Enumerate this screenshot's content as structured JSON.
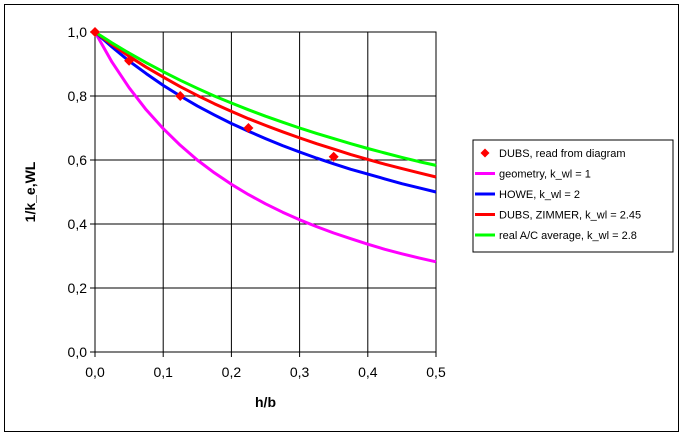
{
  "chart_data": {
    "type": "line",
    "title": "",
    "xlabel": "h/b",
    "ylabel": "1/k_e,WL",
    "xlim": [
      0.0,
      0.5
    ],
    "ylim": [
      0.0,
      1.0
    ],
    "grid": true,
    "legend_position": "right",
    "x_ticks": [
      "0,0",
      "0,1",
      "0,2",
      "0,3",
      "0,4",
      "0,5"
    ],
    "y_ticks": [
      "0,0",
      "0,2",
      "0,4",
      "0,6",
      "0,8",
      "1,0"
    ],
    "series": [
      {
        "name": "DUBS, read from diagram",
        "kind": "scatter",
        "color": "#ff0000",
        "marker": "diamond",
        "x": [
          0.0,
          0.05,
          0.125,
          0.225,
          0.35
        ],
        "y": [
          1.0,
          0.91,
          0.8,
          0.7,
          0.61
        ]
      },
      {
        "name": "geometry, k_wl = 1",
        "kind": "line",
        "color": "#ff00ff",
        "k_wl": 1,
        "x": [
          0.0,
          0.025,
          0.05,
          0.075,
          0.1,
          0.125,
          0.15,
          0.175,
          0.2,
          0.225,
          0.25,
          0.275,
          0.3,
          0.325,
          0.35,
          0.375,
          0.4,
          0.425,
          0.45,
          0.475,
          0.5
        ],
        "y": [
          1.0,
          0.906,
          0.826,
          0.757,
          0.698,
          0.646,
          0.6,
          0.56,
          0.524,
          0.492,
          0.463,
          0.437,
          0.413,
          0.392,
          0.372,
          0.354,
          0.337,
          0.321,
          0.307,
          0.294,
          0.282
        ]
      },
      {
        "name": "HOWE, k_wl = 2",
        "kind": "line",
        "color": "#0000ff",
        "k_wl": 2,
        "x": [
          0.0,
          0.025,
          0.05,
          0.075,
          0.1,
          0.125,
          0.15,
          0.175,
          0.2,
          0.225,
          0.25,
          0.275,
          0.3,
          0.325,
          0.35,
          0.375,
          0.4,
          0.425,
          0.45,
          0.475,
          0.5
        ],
        "y": [
          1.0,
          0.953,
          0.909,
          0.87,
          0.833,
          0.8,
          0.769,
          0.741,
          0.714,
          0.69,
          0.667,
          0.645,
          0.625,
          0.606,
          0.588,
          0.571,
          0.556,
          0.541,
          0.526,
          0.513,
          0.5
        ]
      },
      {
        "name": "DUBS, ZIMMER, k_wl = 2.45",
        "kind": "line",
        "color": "#ff0000",
        "k_wl": 2.45,
        "x": [
          0.0,
          0.025,
          0.05,
          0.075,
          0.1,
          0.125,
          0.15,
          0.175,
          0.2,
          0.225,
          0.25,
          0.275,
          0.3,
          0.325,
          0.35,
          0.375,
          0.4,
          0.425,
          0.45,
          0.475,
          0.5
        ],
        "y": [
          1.0,
          0.961,
          0.924,
          0.89,
          0.859,
          0.829,
          0.802,
          0.776,
          0.752,
          0.729,
          0.708,
          0.688,
          0.669,
          0.651,
          0.634,
          0.617,
          0.602,
          0.587,
          0.573,
          0.56,
          0.547
        ]
      },
      {
        "name": "real A/C average, k_wl = 2.8",
        "kind": "line",
        "color": "#00ff00",
        "k_wl": 2.8,
        "x": [
          0.0,
          0.025,
          0.05,
          0.075,
          0.1,
          0.125,
          0.15,
          0.175,
          0.2,
          0.225,
          0.25,
          0.275,
          0.3,
          0.325,
          0.35,
          0.375,
          0.4,
          0.425,
          0.45,
          0.475,
          0.5
        ],
        "y": [
          1.0,
          0.966,
          0.934,
          0.904,
          0.876,
          0.849,
          0.824,
          0.8,
          0.778,
          0.757,
          0.737,
          0.718,
          0.7,
          0.683,
          0.667,
          0.651,
          0.636,
          0.622,
          0.608,
          0.595,
          0.583
        ]
      }
    ]
  }
}
